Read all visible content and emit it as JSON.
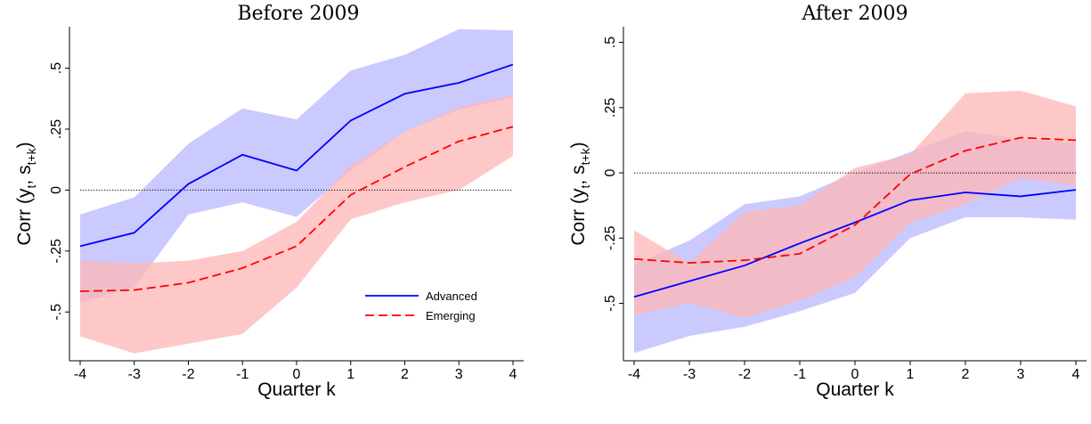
{
  "chart_data": [
    {
      "type": "line",
      "title": "Before 2009",
      "xlabel": "Quarter k",
      "ylabel": "Corr (y",
      "ylabel_sub1": "t",
      "ylabel_mid": ", s",
      "ylabel_sub2": "t+k",
      "ylabel_end": ")",
      "x": [
        -4,
        -3,
        -2,
        -1,
        0,
        1,
        2,
        3,
        4
      ],
      "x_tick_labels": [
        "-4",
        "-3",
        "-2",
        "-1",
        "0",
        "1",
        "2",
        "3",
        "4"
      ],
      "y_ticks": [
        -0.5,
        -0.25,
        0,
        0.25,
        0.5
      ],
      "y_tick_labels": [
        "-.5",
        "-.25",
        "0",
        ".25",
        ".5"
      ],
      "ylim": [
        -0.7,
        0.67
      ],
      "reference_line": 0,
      "legend": {
        "placement": "bottom-right",
        "entries": [
          "Advanced",
          "Emerging"
        ]
      },
      "series": [
        {
          "name": "Advanced",
          "color": "#0000ff",
          "band_color": "#b8b8ff",
          "dash": "solid",
          "values": [
            -0.23,
            -0.175,
            0.025,
            0.145,
            0.08,
            0.285,
            0.395,
            0.44,
            0.515
          ],
          "lower": [
            -0.46,
            -0.4,
            -0.1,
            -0.05,
            -0.11,
            0.08,
            0.24,
            0.33,
            0.38
          ],
          "upper": [
            -0.1,
            -0.03,
            0.19,
            0.335,
            0.29,
            0.49,
            0.555,
            0.66,
            0.655
          ]
        },
        {
          "name": "Emerging",
          "color": "#ff0000",
          "band_color": "#ffb5b5",
          "dash": "dashed",
          "values": [
            -0.415,
            -0.41,
            -0.38,
            -0.32,
            -0.23,
            -0.02,
            0.095,
            0.2,
            0.26
          ],
          "lower": [
            -0.6,
            -0.67,
            -0.63,
            -0.59,
            -0.4,
            -0.12,
            -0.05,
            0.0,
            0.14
          ],
          "upper": [
            -0.29,
            -0.3,
            -0.29,
            -0.25,
            -0.13,
            0.1,
            0.24,
            0.34,
            0.39
          ]
        }
      ]
    },
    {
      "type": "line",
      "title": "After 2009",
      "xlabel": "Quarter k",
      "ylabel": "Corr (y",
      "ylabel_sub1": "t",
      "ylabel_mid": ", s",
      "ylabel_sub2": "t+k",
      "ylabel_end": ")",
      "x": [
        -4,
        -3,
        -2,
        -1,
        0,
        1,
        2,
        3,
        4
      ],
      "x_tick_labels": [
        "-4",
        "-3",
        "-2",
        "-1",
        "0",
        "1",
        "2",
        "3",
        "4"
      ],
      "y_ticks": [
        -0.5,
        -0.25,
        0,
        0.25,
        0.5
      ],
      "y_tick_labels": [
        "-.5",
        "-.25",
        "0",
        ".25",
        ".5"
      ],
      "ylim": [
        -0.72,
        0.56
      ],
      "reference_line": 0,
      "legend": null,
      "series": [
        {
          "name": "Advanced",
          "color": "#0000ff",
          "band_color": "#b8b8ff",
          "dash": "solid",
          "values": [
            -0.475,
            -0.415,
            -0.355,
            -0.27,
            -0.19,
            -0.105,
            -0.075,
            -0.09,
            -0.065
          ],
          "lower": [
            -0.69,
            -0.625,
            -0.59,
            -0.53,
            -0.46,
            -0.25,
            -0.17,
            -0.17,
            -0.18
          ],
          "upper": [
            -0.35,
            -0.26,
            -0.12,
            -0.09,
            0.0,
            0.08,
            0.16,
            0.13,
            0.115
          ]
        },
        {
          "name": "Emerging",
          "color": "#ff0000",
          "band_color": "#ffb5b5",
          "dash": "dashed",
          "values": [
            -0.33,
            -0.345,
            -0.335,
            -0.31,
            -0.2,
            -0.005,
            0.085,
            0.135,
            0.125
          ],
          "lower": [
            -0.545,
            -0.5,
            -0.555,
            -0.49,
            -0.4,
            -0.19,
            -0.12,
            -0.02,
            -0.05
          ],
          "upper": [
            -0.22,
            -0.345,
            -0.15,
            -0.125,
            0.02,
            0.07,
            0.305,
            0.315,
            0.255
          ]
        }
      ]
    }
  ]
}
